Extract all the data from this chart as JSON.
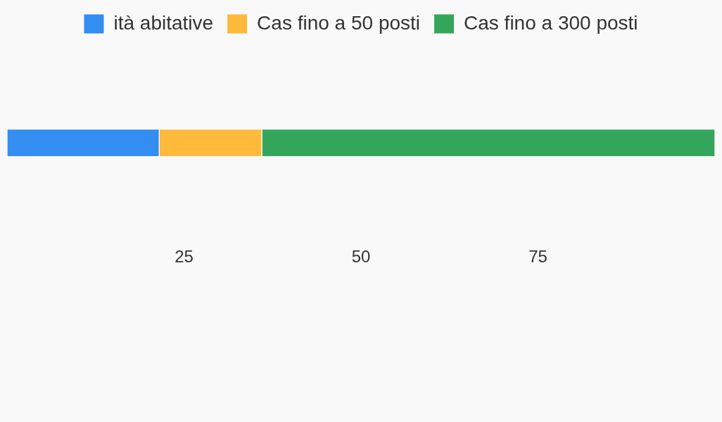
{
  "chart_data": {
    "type": "bar",
    "orientation": "horizontal",
    "stacked": true,
    "categories": [
      null
    ],
    "series": [
      {
        "name": "ità abitative",
        "color": "#348df0",
        "values": [
          21.5
        ]
      },
      {
        "name": "Cas fino a 50 posti",
        "color": "#ffb93b",
        "values": [
          14.5
        ]
      },
      {
        "name": "Cas fino a 300 posti",
        "color": "#34a65b",
        "values": [
          64
        ]
      }
    ],
    "xlim": [
      0,
      100
    ],
    "xticks": [
      25,
      50,
      75
    ],
    "legend": "top",
    "tick_labels": "x"
  }
}
